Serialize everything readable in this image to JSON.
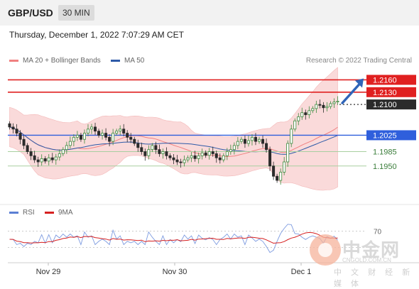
{
  "header": {
    "symbol": "GBP/USD",
    "timeframe": "30 MIN"
  },
  "datetime": "Thursday, December 1, 2022 7:07:29 AM CET",
  "legend": [
    {
      "label": "MA 20 + Bollinger Bands",
      "color": "#f08080"
    },
    {
      "label": "MA 50",
      "color": "#2e5aa8"
    }
  ],
  "copyright": "Research © 2022 Trading Central",
  "rsi_legend": [
    {
      "label": "RSI",
      "color": "#5b7fd4"
    },
    {
      "label": "9MA",
      "color": "#d62020"
    }
  ],
  "watermark": {
    "name": "中金网",
    "url": "CNGOLD.COM.CN",
    "sub": "中 文 财 经 新 媒 体"
  },
  "chart_data": {
    "type": "candlestick",
    "x_ticks": [
      "Nov 29",
      "Nov 30",
      "Dec 1"
    ],
    "ylim": [
      1.187,
      1.2185
    ],
    "levels": [
      {
        "value": 1.216,
        "label": "1.2160",
        "kind": "resistance"
      },
      {
        "value": 1.213,
        "label": "1.2130",
        "kind": "resistance"
      },
      {
        "value": 1.21,
        "label": "1.2100",
        "kind": "current"
      },
      {
        "value": 1.2025,
        "label": "1.2025",
        "kind": "pivot"
      },
      {
        "value": 1.1985,
        "label": "1.1985",
        "kind": "support"
      },
      {
        "value": 1.195,
        "label": "1.1950",
        "kind": "support"
      }
    ],
    "colors": {
      "up": "#3d8a3d",
      "down": "#2b2b2b",
      "resistance": "#e02020",
      "pivot": "#2f5fdc",
      "support": "#a8cfa0",
      "band": "#fadada"
    },
    "closes": [
      1.2045,
      1.204,
      1.203,
      1.2015,
      1.2,
      1.1985,
      1.1975,
      1.1965,
      1.196,
      1.1968,
      1.1962,
      1.197,
      1.1965,
      1.1972,
      1.198,
      1.199,
      1.2,
      1.201,
      1.202,
      1.2025,
      1.2015,
      1.203,
      1.204,
      1.2045,
      1.2035,
      1.2025,
      1.203,
      1.202,
      1.201,
      1.203,
      1.2035,
      1.204,
      1.203,
      1.202,
      1.2015,
      1.2005,
      1.1995,
      1.1985,
      1.1975,
      1.199,
      1.2,
      1.199,
      1.198,
      1.1985,
      1.1975,
      1.197,
      1.1965,
      1.196,
      1.1958,
      1.1965,
      1.197,
      1.1975,
      1.1968,
      1.1975,
      1.1982,
      1.1976,
      1.1985,
      1.198,
      1.197,
      1.1965,
      1.1975,
      1.1985,
      1.199,
      1.2,
      1.201,
      1.2015,
      1.2005,
      1.2012,
      1.202,
      1.201,
      1.2015,
      1.2005,
      1.199,
      1.195,
      1.1925,
      1.1915,
      1.1935,
      1.196,
      1.2005,
      1.204,
      1.206,
      1.207,
      1.208,
      1.2075,
      1.2085,
      1.209,
      1.21,
      1.2098,
      1.2092,
      1.2095,
      1.2102,
      1.2106,
      1.2108
    ],
    "rsi": {
      "ylim": [
        0,
        100
      ],
      "level": 70,
      "level_label": "70"
    }
  }
}
